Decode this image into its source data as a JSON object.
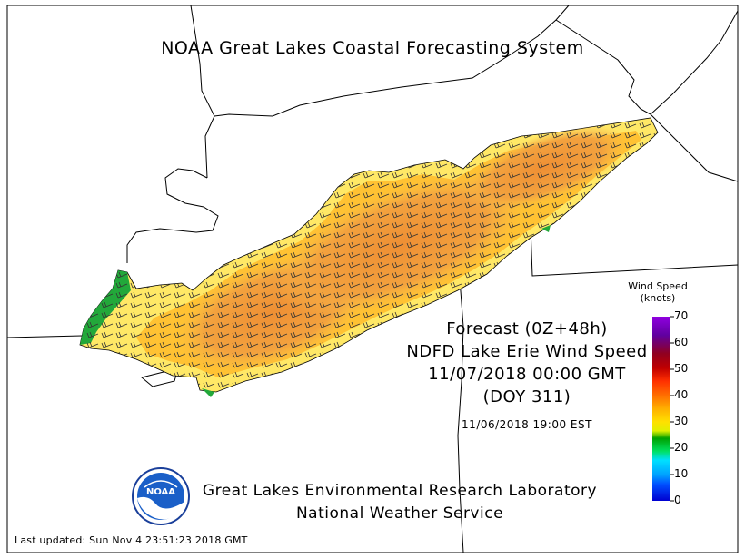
{
  "title": "NOAA Great Lakes Coastal Forecasting System",
  "forecast": {
    "line1": "Forecast (0Z+48h)",
    "line2": "NDFD Lake Erie Wind Speed",
    "line3": "11/07/2018 00:00 GMT",
    "line4": "(DOY 311)",
    "local_time": "11/06/2018 19:00 EST"
  },
  "organization": {
    "line1": "Great Lakes Environmental Research Laboratory",
    "line2": "National Weather Service"
  },
  "logo": {
    "text": "NOAA"
  },
  "last_updated": "Last updated: Sun Nov  4 23:51:23 2018 GMT",
  "legend": {
    "title_line1": "Wind Speed",
    "title_line2": "(knots)",
    "ticks": [
      "70",
      "60",
      "50",
      "40",
      "30",
      "20",
      "10",
      "0"
    ],
    "tick_values": [
      70,
      60,
      50,
      40,
      30,
      20,
      10,
      0
    ]
  },
  "colors": {
    "scale_0_10": "#0000ff",
    "scale_10_20": "#00c8ff",
    "scale_20_25": "#00b400",
    "scale_25_30": "#ffff00",
    "scale_30_40": "#ff9c00",
    "scale_40_50": "#ff3c00",
    "scale_50_60": "#a00000",
    "scale_60_70": "#8000c0",
    "lake_light": "#ffea6a",
    "lake_mid": "#ffc233",
    "lake_core": "#f29a3a",
    "shore_green": "#22a83a",
    "coast_line": "#000000"
  },
  "icons": [
    "wind-barb-icon",
    "noaa-logo-icon"
  ]
}
